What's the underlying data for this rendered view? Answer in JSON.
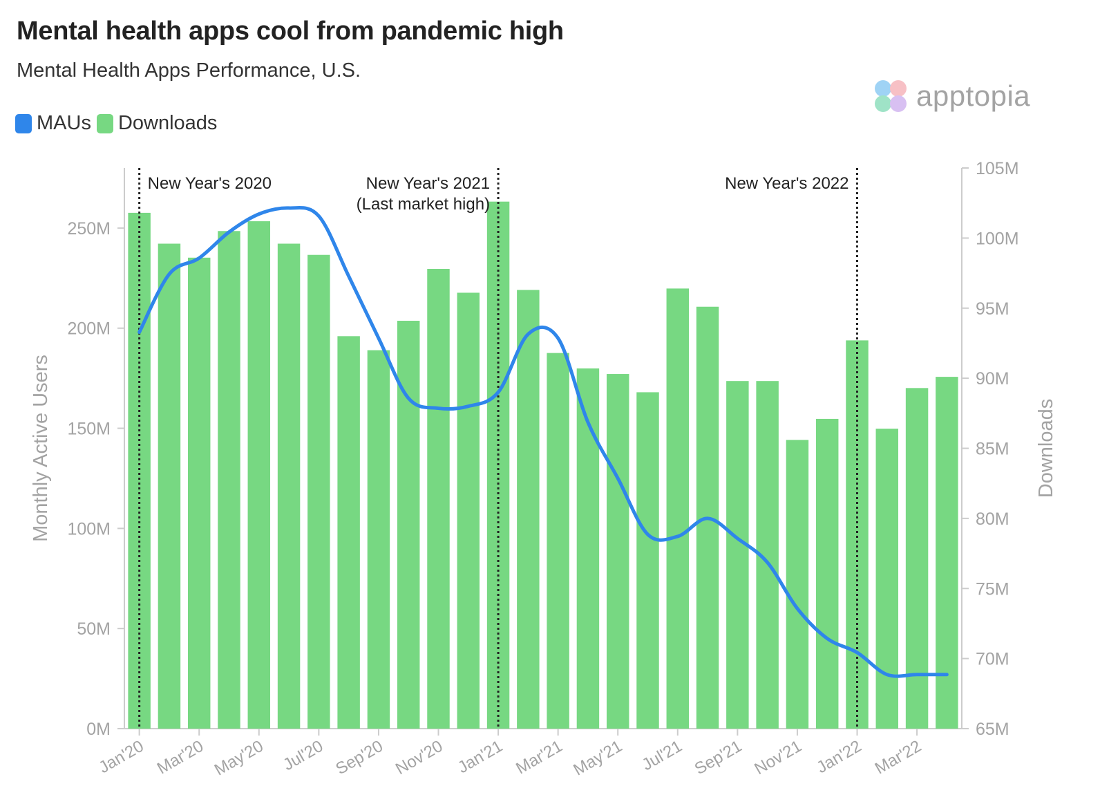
{
  "title": "Mental health apps cool from pandemic high",
  "subtitle": "Mental Health Apps Performance, U.S.",
  "brand": {
    "name": "apptopia",
    "logo_colors": [
      "#9fd3f5",
      "#f7c0c5",
      "#9fe3c7",
      "#d8c0f2"
    ]
  },
  "legend": [
    {
      "label": "MAUs",
      "color": "#2f86ea"
    },
    {
      "label": "Downloads",
      "color": "#77d882"
    }
  ],
  "chart_data": {
    "type": "bar+line",
    "x": [
      "Jan'20",
      "Feb'20",
      "Mar'20",
      "Apr'20",
      "May'20",
      "Jun'20",
      "Jul'20",
      "Aug'20",
      "Sep'20",
      "Oct'20",
      "Nov'20",
      "Dec'20",
      "Jan'21",
      "Feb'21",
      "Mar'21",
      "Apr'21",
      "May'21",
      "Jun'21",
      "Jul'21",
      "Aug'21",
      "Sep'21",
      "Oct'21",
      "Nov'21",
      "Dec'21",
      "Jan'22",
      "Feb'22",
      "Mar'22",
      "Apr'22"
    ],
    "x_tick_labels": [
      "Jan'20",
      "Mar'20",
      "May'20",
      "Jul'20",
      "Sep'20",
      "Nov'20",
      "Jan'21",
      "Mar'21",
      "May'21",
      "Jul'21",
      "Sep'21",
      "Nov'21",
      "Jan'22",
      "Mar'22"
    ],
    "series": [
      {
        "name": "MAUs",
        "kind": "line",
        "axis": "left",
        "color": "#2f86ea",
        "values": [
          198,
          227,
          235,
          248,
          257,
          260,
          256,
          226,
          195,
          165,
          160,
          161,
          168,
          197,
          195,
          153,
          125,
          97,
          96,
          105,
          95,
          83,
          60,
          45,
          38,
          27,
          27,
          27
        ]
      },
      {
        "name": "Downloads",
        "kind": "bar",
        "axis": "right",
        "color": "#77d882",
        "values": [
          101.8,
          99.6,
          98.6,
          100.5,
          101.2,
          99.6,
          98.8,
          93.0,
          92.0,
          94.1,
          97.8,
          96.1,
          102.6,
          96.3,
          91.8,
          90.7,
          90.3,
          89.0,
          96.4,
          95.1,
          89.8,
          89.8,
          85.6,
          87.1,
          92.7,
          86.4,
          89.3,
          90.1
        ]
      }
    ],
    "y_left": {
      "label": "Monthly Active Users",
      "min": 0,
      "max": 280,
      "ticks": [
        "0M",
        "50M",
        "100M",
        "150M",
        "200M",
        "250M"
      ]
    },
    "y_right": {
      "label": "Downloads",
      "min": 65,
      "max": 105,
      "ticks": [
        "65M",
        "70M",
        "75M",
        "80M",
        "85M",
        "90M",
        "95M",
        "100M",
        "105M"
      ]
    },
    "annotations": [
      {
        "index": 0,
        "lines": [
          "New Year's 2020"
        ],
        "side": "right"
      },
      {
        "index": 12,
        "lines": [
          "New Year's 2021",
          "(Last market high)"
        ],
        "side": "left"
      },
      {
        "index": 24,
        "lines": [
          "New Year's 2022"
        ],
        "side": "left"
      }
    ],
    "grid": false,
    "legend_position": "top-left"
  }
}
